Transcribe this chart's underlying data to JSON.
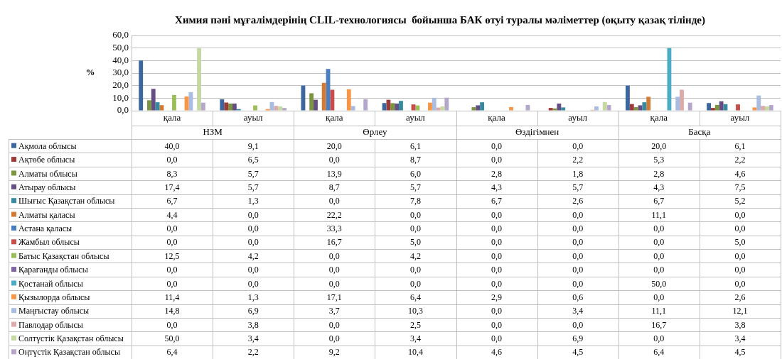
{
  "chart_data": {
    "type": "bar",
    "title": "Химия пәні мұғалімдерінің CLIL-технологиясы  бойынша БАК өтуі туралы мәліметтер (оқыту қазақ тілінде)",
    "ylabel": "%",
    "categories": [
      "қала",
      "ауыл",
      "қала",
      "ауыл",
      "қала",
      "ауыл",
      "қала",
      "ауыл"
    ],
    "annotations": [
      "НЗМ",
      "Өрлеу",
      "Өздігімнен",
      "Басқа"
    ],
    "ylim": [
      0,
      60
    ],
    "yticks": [
      {
        "value": 0,
        "label": "0,0"
      },
      {
        "value": 10,
        "label": "10,0"
      },
      {
        "value": 20,
        "label": "20,0"
      },
      {
        "value": 30,
        "label": "30,0"
      },
      {
        "value": 40,
        "label": "40,0"
      },
      {
        "value": 50,
        "label": "50,0"
      },
      {
        "value": 60,
        "label": "60,0"
      }
    ],
    "grid": "y",
    "legend": "bottom",
    "series": [
      {
        "name": "Ақмола облысы",
        "color": "#3c679e",
        "values": [
          40.0,
          9.1,
          20.0,
          6.1,
          0.0,
          0.0,
          20.0,
          6.1
        ],
        "value_labels": [
          "40,0",
          "9,1",
          "20,0",
          "6,1",
          "0,0",
          "0,0",
          "20,0",
          "6,1"
        ]
      },
      {
        "name": "Ақтөбе облысы",
        "color": "#9c3b38",
        "values": [
          0.0,
          6.5,
          0.0,
          8.7,
          0.0,
          2.2,
          5.3,
          2.2
        ],
        "value_labels": [
          "0,0",
          "6,5",
          "0,0",
          "8,7",
          "0,0",
          "2,2",
          "5,3",
          "2,2"
        ]
      },
      {
        "name": "Алматы облысы",
        "color": "#7a9440",
        "values": [
          8.3,
          5.7,
          13.9,
          6.0,
          2.8,
          1.8,
          2.8,
          4.6
        ],
        "value_labels": [
          "8,3",
          "5,7",
          "13,9",
          "6,0",
          "2,8",
          "1,8",
          "2,8",
          "4,6"
        ]
      },
      {
        "name": "Атырау облысы",
        "color": "#654e84",
        "values": [
          17.4,
          5.7,
          8.7,
          5.7,
          4.3,
          5.7,
          4.3,
          7.5
        ],
        "value_labels": [
          "17,4",
          "5,7",
          "8,7",
          "5,7",
          "4,3",
          "5,7",
          "4,3",
          "7,5"
        ]
      },
      {
        "name": "Шығыс Қазақстан облысы",
        "color": "#368aa0",
        "values": [
          6.7,
          1.3,
          0.0,
          7.8,
          6.7,
          2.6,
          6.7,
          5.2
        ],
        "value_labels": [
          "6,7",
          "1,3",
          "0,0",
          "7,8",
          "6,7",
          "2,6",
          "6,7",
          "5,2"
        ]
      },
      {
        "name": "Алматы қаласы",
        "color": "#d27a33",
        "values": [
          4.4,
          0.0,
          22.2,
          0.0,
          0.0,
          0.0,
          11.1,
          0.0
        ],
        "value_labels": [
          "4,4",
          "0,0",
          "22,2",
          "0,0",
          "0,0",
          "0,0",
          "11,1",
          "0,0"
        ]
      },
      {
        "name": "Астана қаласы",
        "color": "#4a7ec2",
        "values": [
          0.0,
          0.0,
          33.3,
          0.0,
          0.0,
          0.0,
          0.0,
          0.0
        ],
        "value_labels": [
          "0,0",
          "0,0",
          "33,3",
          "0,0",
          "0,0",
          "0,0",
          "0,0",
          "0,0"
        ]
      },
      {
        "name": "Жамбыл облысы",
        "color": "#c84c48",
        "values": [
          0.0,
          0.0,
          16.7,
          5.0,
          0.0,
          0.0,
          0.0,
          5.0
        ],
        "value_labels": [
          "0,0",
          "0,0",
          "16,7",
          "5,0",
          "0,0",
          "0,0",
          "0,0",
          "5,0"
        ]
      },
      {
        "name": "Батыс Қазақстан облысы",
        "color": "#9bbf58",
        "values": [
          12.5,
          4.2,
          0.0,
          4.2,
          0.0,
          0.0,
          0.0,
          0.0
        ],
        "value_labels": [
          "12,5",
          "4,2",
          "0,0",
          "4,2",
          "0,0",
          "0,0",
          "0,0",
          "0,0"
        ]
      },
      {
        "name": "Қарағанды облысы",
        "color": "#8064a2",
        "values": [
          0.0,
          0.0,
          0.0,
          0.0,
          0.0,
          0.0,
          0.0,
          0.0
        ],
        "value_labels": [
          "0,0",
          "0,0",
          "0,0",
          "0,0",
          "0,0",
          "0,0",
          "0,0",
          "0,0"
        ]
      },
      {
        "name": "Қостанай облысы",
        "color": "#4bacc6",
        "values": [
          0.0,
          0.0,
          0.0,
          0.0,
          0.0,
          0.0,
          50.0,
          0.0
        ],
        "value_labels": [
          "0,0",
          "0,0",
          "0,0",
          "0,0",
          "0,0",
          "0,0",
          "50,0",
          "0,0"
        ]
      },
      {
        "name": "Қызылорда облысы",
        "color": "#f79646",
        "values": [
          11.4,
          1.3,
          17.1,
          6.4,
          2.9,
          0.6,
          0.0,
          2.6
        ],
        "value_labels": [
          "11,4",
          "1,3",
          "17,1",
          "6,4",
          "2,9",
          "0,6",
          "0,0",
          "2,6"
        ]
      },
      {
        "name": "Маңғыстау облысы",
        "color": "#a9bde3",
        "values": [
          14.8,
          6.9,
          3.7,
          10.3,
          0.0,
          3.4,
          11.1,
          12.1
        ],
        "value_labels": [
          "14,8",
          "6,9",
          "3,7",
          "10,3",
          "0,0",
          "3,4",
          "11,1",
          "12,1"
        ]
      },
      {
        "name": "Павлодар облысы",
        "color": "#dcaaa9",
        "values": [
          0.0,
          3.8,
          0.0,
          2.5,
          0.0,
          0.0,
          16.7,
          3.8
        ],
        "value_labels": [
          "0,0",
          "3,8",
          "0,0",
          "2,5",
          "0,0",
          "0,0",
          "16,7",
          "3,8"
        ]
      },
      {
        "name": "Солтүстік Қазақстан облысы",
        "color": "#c5d9a0",
        "values": [
          50.0,
          3.4,
          0.0,
          3.4,
          0.0,
          6.9,
          0.0,
          3.4
        ],
        "value_labels": [
          "50,0",
          "3,4",
          "0,0",
          "3,4",
          "0,0",
          "6,9",
          "0,0",
          "3,4"
        ]
      },
      {
        "name": "Оңтүстік Қазақстан облысы",
        "color": "#b5a7cb",
        "values": [
          6.4,
          2.2,
          9.2,
          10.4,
          4.6,
          4.5,
          6.4,
          4.5
        ],
        "value_labels": [
          "6,4",
          "2,2",
          "9,2",
          "10,4",
          "4,6",
          "4,5",
          "6,4",
          "4,5"
        ]
      }
    ]
  }
}
